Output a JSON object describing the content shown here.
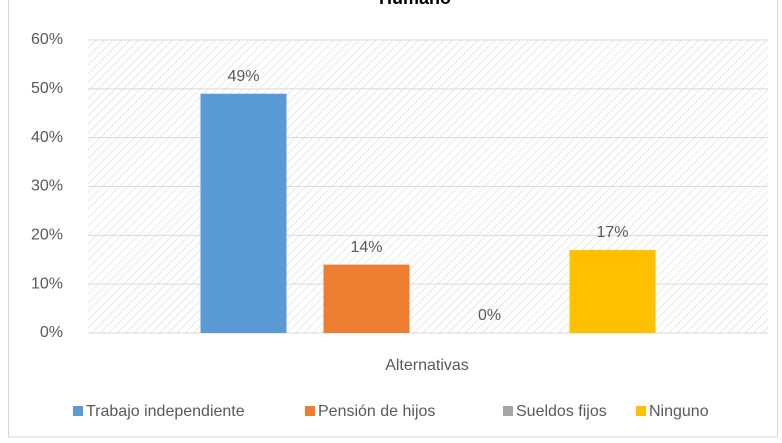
{
  "chart_data": {
    "type": "bar",
    "title": "Humano",
    "categories": [
      "Alternativas"
    ],
    "series": [
      {
        "name": "Trabajo independiente",
        "color": "#5b9bd5",
        "values": [
          49
        ],
        "value_labels": [
          "49%"
        ]
      },
      {
        "name": "Pensión de hijos",
        "color": "#ed7d31",
        "values": [
          14
        ],
        "value_labels": [
          "14%"
        ]
      },
      {
        "name": "Sueldos fijos",
        "color": "#a5a5a5",
        "values": [
          0
        ],
        "value_labels": [
          "0%"
        ]
      },
      {
        "name": "Ninguno",
        "color": "#ffc000",
        "values": [
          17
        ],
        "value_labels": [
          "17%"
        ]
      }
    ],
    "ylim": [
      0,
      60
    ],
    "yticks": [
      {
        "value": 0,
        "label": "0%"
      },
      {
        "value": 10,
        "label": "10%"
      },
      {
        "value": 20,
        "label": "20%"
      },
      {
        "value": 30,
        "label": "30%"
      },
      {
        "value": 40,
        "label": "40%"
      },
      {
        "value": 50,
        "label": "50%"
      },
      {
        "value": 60,
        "label": "60%"
      }
    ],
    "grid": true,
    "legend": "bottom"
  }
}
